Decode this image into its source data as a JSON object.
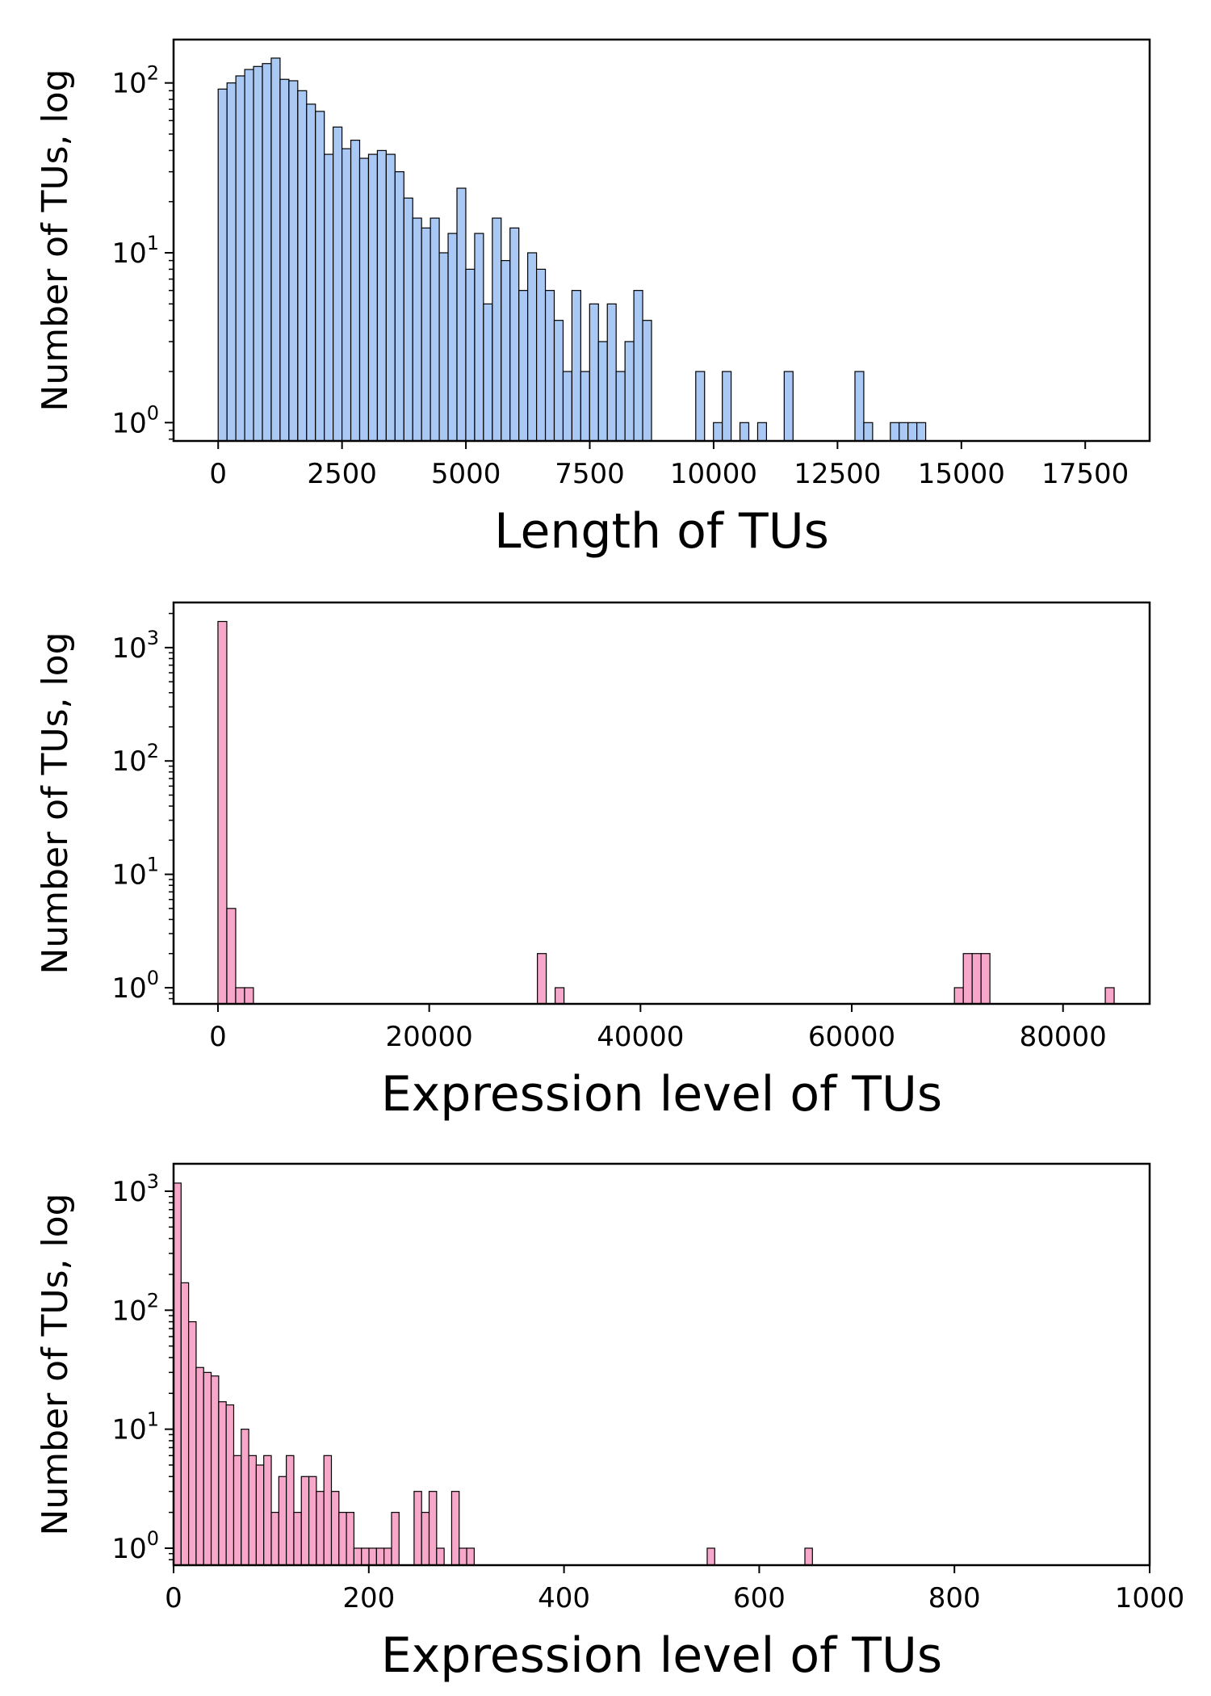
{
  "chart_data": [
    {
      "type": "bar",
      "subtype": "histogram",
      "ylog": true,
      "color": "#a9c8f4",
      "edge_color": "#000000",
      "xlabel": "Length of TUs",
      "ylabel": "Number of TUs, log",
      "xlim": [
        -900,
        18800
      ],
      "ylim": [
        0.78,
        180
      ],
      "xticks": [
        0,
        2500,
        5000,
        7500,
        10000,
        12500,
        15000,
        17500
      ],
      "xtick_labels": [
        "0",
        "2500",
        "5000",
        "7500",
        "10000",
        "12500",
        "15000",
        "17500"
      ],
      "yticks": [
        1,
        10,
        100
      ],
      "ytick_bases": [
        "10",
        "10",
        "10"
      ],
      "ytick_exponents": [
        "0",
        "1",
        "2"
      ],
      "bin_start": 0,
      "bin_width": 178.5,
      "counts": [
        92,
        100,
        110,
        120,
        125,
        130,
        140,
        105,
        103,
        90,
        75,
        68,
        38,
        55,
        41,
        46,
        36,
        38,
        40,
        38,
        30,
        21,
        16,
        14,
        16,
        10,
        13,
        24,
        8,
        13,
        5,
        16,
        9,
        14,
        6,
        10,
        8,
        6,
        4,
        2,
        6,
        2,
        5,
        3,
        5,
        2,
        3,
        6,
        4,
        0,
        0,
        0,
        0,
        0,
        2,
        0,
        1,
        2,
        0,
        1,
        0,
        1,
        0,
        0,
        2,
        0,
        0,
        0,
        0,
        0,
        0,
        0,
        2,
        1,
        0,
        0,
        1,
        1,
        1,
        1,
        0,
        0,
        0,
        0,
        0,
        0,
        0,
        0,
        0,
        0,
        0,
        0,
        0,
        0,
        0,
        0,
        0,
        0,
        0,
        0,
        0,
        0,
        0,
        0,
        0,
        0,
        0,
        0,
        0,
        0,
        0
      ]
    },
    {
      "type": "bar",
      "subtype": "histogram",
      "ylog": true,
      "color": "#f7a8ca",
      "edge_color": "#000000",
      "xlabel": "Expression level of TUs",
      "ylabel": "Number of TUs, log",
      "xlim": [
        -4200,
        88200
      ],
      "ylim": [
        0.72,
        2500
      ],
      "xticks": [
        0,
        20000,
        40000,
        60000,
        80000
      ],
      "xtick_labels": [
        "0",
        "20000",
        "40000",
        "60000",
        "80000"
      ],
      "yticks": [
        1,
        10,
        100,
        1000
      ],
      "ytick_bases": [
        "10",
        "10",
        "10",
        "10"
      ],
      "ytick_exponents": [
        "0",
        "1",
        "2",
        "3"
      ],
      "bin_start": 0,
      "bin_width": 840,
      "counts": [
        1700,
        5,
        1,
        1,
        0,
        0,
        0,
        0,
        0,
        0,
        0,
        0,
        0,
        0,
        0,
        0,
        0,
        0,
        0,
        0,
        0,
        0,
        0,
        0,
        0,
        0,
        0,
        0,
        0,
        0,
        0,
        0,
        0,
        0,
        0,
        0,
        2,
        0,
        1,
        0,
        0,
        0,
        0,
        0,
        0,
        0,
        0,
        0,
        0,
        0,
        0,
        0,
        0,
        0,
        0,
        0,
        0,
        0,
        0,
        0,
        0,
        0,
        0,
        0,
        0,
        0,
        0,
        0,
        0,
        0,
        0,
        0,
        0,
        0,
        0,
        0,
        0,
        0,
        0,
        0,
        0,
        0,
        0,
        1,
        2,
        2,
        2,
        0,
        0,
        0,
        0,
        0,
        0,
        0,
        0,
        0,
        0,
        0,
        0,
        0,
        1
      ]
    },
    {
      "type": "bar",
      "subtype": "histogram",
      "ylog": true,
      "color": "#f7a8ca",
      "edge_color": "#000000",
      "xlabel": "Expression level of TUs",
      "ylabel": "Number of TUs, log",
      "xlim": [
        0,
        1000
      ],
      "ylim": [
        0.72,
        1700
      ],
      "xticks": [
        0,
        200,
        400,
        600,
        800,
        1000
      ],
      "xtick_labels": [
        "0",
        "200",
        "400",
        "600",
        "800",
        "1000"
      ],
      "yticks": [
        1,
        10,
        100,
        1000
      ],
      "ytick_bases": [
        "10",
        "10",
        "10",
        "10"
      ],
      "ytick_exponents": [
        "0",
        "1",
        "2",
        "3"
      ],
      "bin_start": 0,
      "bin_width": 7.7,
      "counts": [
        1170,
        170,
        80,
        33,
        30,
        28,
        17,
        16,
        6,
        10,
        6,
        5,
        6,
        2,
        4,
        6,
        2,
        4,
        4,
        3,
        6,
        3,
        2,
        2,
        1,
        1,
        1,
        1,
        1,
        2,
        0,
        0,
        3,
        2,
        3,
        1,
        0,
        3,
        1,
        1,
        0,
        0,
        0,
        0,
        0,
        0,
        0,
        0,
        0,
        0,
        0,
        0,
        0,
        0,
        0,
        0,
        0,
        0,
        0,
        0,
        0,
        0,
        0,
        0,
        0,
        0,
        0,
        0,
        0,
        0,
        0,
        1,
        0,
        0,
        0,
        0,
        0,
        0,
        0,
        0,
        0,
        0,
        0,
        0,
        1,
        0,
        0,
        0,
        0,
        0,
        0,
        0,
        0,
        0,
        0,
        0,
        0,
        0,
        0,
        0,
        0,
        0,
        0,
        0,
        0,
        0,
        0,
        0,
        0,
        0,
        0,
        0,
        0,
        0,
        0,
        0,
        0,
        0,
        0,
        0,
        0,
        0,
        0,
        0,
        0,
        0,
        0,
        0,
        0,
        0,
        0,
        0,
        0
      ]
    }
  ]
}
